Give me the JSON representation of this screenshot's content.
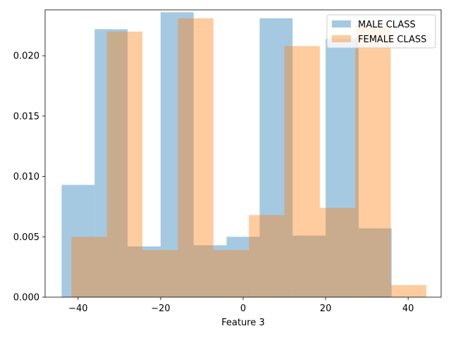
{
  "chart_data": {
    "type": "bar",
    "subtype": "overlapping-histogram",
    "title": "",
    "xlabel": "Feature 3",
    "ylabel": "",
    "xlim": [
      -48,
      48
    ],
    "ylim": [
      0,
      0.0238
    ],
    "xticks": [
      -40,
      -20,
      0,
      20,
      40
    ],
    "yticks": [
      0.0,
      0.005,
      0.01,
      0.015,
      0.02
    ],
    "ytick_format": "fixed3",
    "grid": false,
    "legend_position": "top-right",
    "series": [
      {
        "name": "MALE CLASS",
        "color": "#1f77b4",
        "alpha": 0.4,
        "bins": [
          {
            "x0": -44.0,
            "x1": -36.0,
            "value": 0.0093
          },
          {
            "x0": -36.0,
            "x1": -28.0,
            "value": 0.0222
          },
          {
            "x0": -28.0,
            "x1": -20.0,
            "value": 0.0042
          },
          {
            "x0": -20.0,
            "x1": -12.0,
            "value": 0.0236
          },
          {
            "x0": -12.0,
            "x1": -4.0,
            "value": 0.0043
          },
          {
            "x0": -4.0,
            "x1": 4.0,
            "value": 0.005
          },
          {
            "x0": 4.0,
            "x1": 12.0,
            "value": 0.0231
          },
          {
            "x0": 12.0,
            "x1": 20.0,
            "value": 0.0051
          },
          {
            "x0": 20.0,
            "x1": 28.0,
            "value": 0.0214
          },
          {
            "x0": 28.0,
            "x1": 36.0,
            "value": 0.0057
          }
        ]
      },
      {
        "name": "FEMALE CLASS",
        "color": "#ff7f0e",
        "alpha": 0.4,
        "bins": [
          {
            "x0": -41.6,
            "x1": -33.0,
            "value": 0.005
          },
          {
            "x0": -33.0,
            "x1": -24.4,
            "value": 0.022
          },
          {
            "x0": -24.4,
            "x1": -15.8,
            "value": 0.0039
          },
          {
            "x0": -15.8,
            "x1": -7.2,
            "value": 0.0231
          },
          {
            "x0": -7.2,
            "x1": 1.4,
            "value": 0.0039
          },
          {
            "x0": 1.4,
            "x1": 10.0,
            "value": 0.0068
          },
          {
            "x0": 10.0,
            "x1": 18.6,
            "value": 0.0208
          },
          {
            "x0": 18.6,
            "x1": 27.2,
            "value": 0.0074
          },
          {
            "x0": 27.2,
            "x1": 35.8,
            "value": 0.0225
          },
          {
            "x0": 35.8,
            "x1": 44.4,
            "value": 0.001
          }
        ]
      }
    ]
  }
}
